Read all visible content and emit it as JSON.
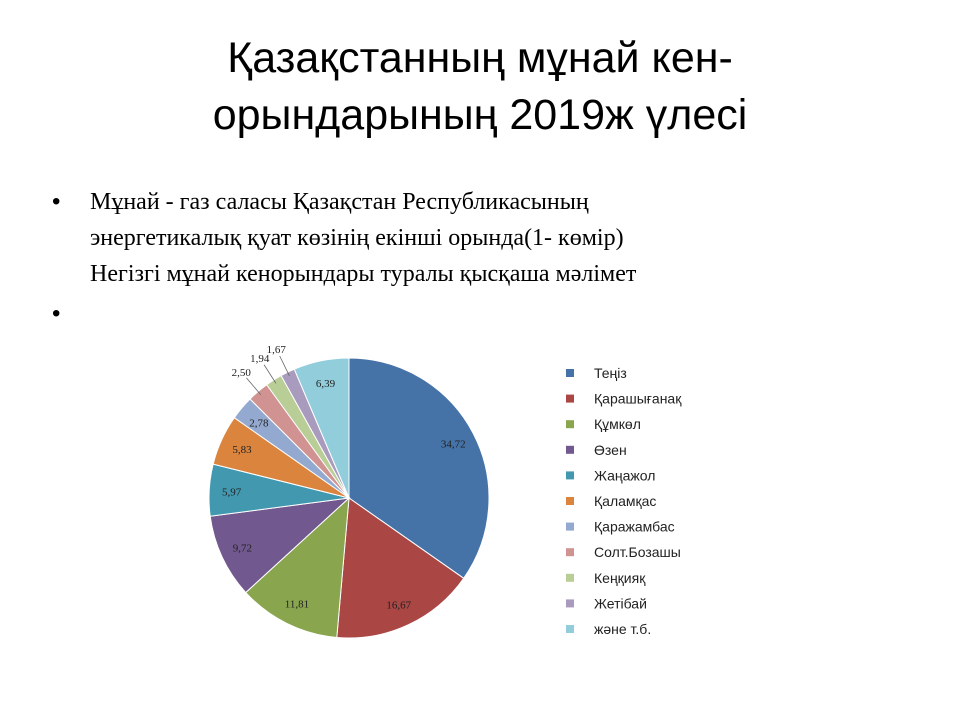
{
  "slide": {
    "title_line1": "Қазақстанның мұнай кен-",
    "title_line2": "орындарының 2019ж үлесі",
    "bullet_text_lines": [
      "Мұнай - газ саласы Қазақстан Республикасының",
      "энергетикалық қуат көзінің екінші орында(1- көмір)",
      "Негізгі мұнай кенорындары  туралы қысқаша мәлімет"
    ],
    "bullet_symbol": "•"
  },
  "chart_data": {
    "type": "pie",
    "title": "",
    "legend_position": "right",
    "slices": [
      {
        "name": "Теңіз",
        "value": 34.72,
        "label": "34,72",
        "color": "#4572A7"
      },
      {
        "name": "Қарашығанақ",
        "value": 16.67,
        "label": "16,67",
        "color": "#AA4643"
      },
      {
        "name": "Құмкөл",
        "value": 11.81,
        "label": "11,81",
        "color": "#89A54E"
      },
      {
        "name": "Өзен",
        "value": 9.72,
        "label": "9,72",
        "color": "#71588F"
      },
      {
        "name": "Жаңажол",
        "value": 5.97,
        "label": "5,97",
        "color": "#4198AF"
      },
      {
        "name": "Қаламқас",
        "value": 5.83,
        "label": "5,83",
        "color": "#DB843D"
      },
      {
        "name": "Қаражамбас",
        "value": 2.78,
        "label": "2,78",
        "color": "#93A9CF"
      },
      {
        "name": "Солт.Бозашы",
        "value": 2.5,
        "label": "2,50",
        "color": "#D19392"
      },
      {
        "name": "Кеңқияқ",
        "value": 1.94,
        "label": "1,94",
        "color": "#B9CD96"
      },
      {
        "name": "Жетібай",
        "value": 1.67,
        "label": "1,67",
        "color": "#A99BBD"
      },
      {
        "name": "және т.б.",
        "value": 6.39,
        "label": "6,39",
        "color": "#92CDDC"
      }
    ]
  }
}
